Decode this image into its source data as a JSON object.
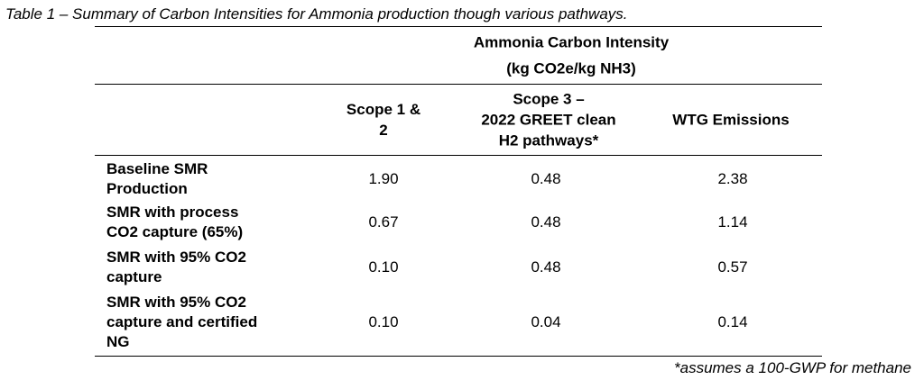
{
  "caption": "Table 1 – Summary of Carbon Intensities for Ammonia production though various pathways.",
  "table": {
    "group_header": [
      "Ammonia Carbon Intensity",
      "(kg CO2e/kg NH3)"
    ],
    "columns": [
      [
        "Scope 1 &",
        "2"
      ],
      [
        "Scope 3 –",
        "2022 GREET clean",
        "H2 pathways*"
      ],
      [
        "WTG Emissions"
      ]
    ],
    "rows": [
      {
        "label": [
          "Baseline SMR",
          "Production"
        ],
        "values": [
          "1.90",
          "0.48",
          "2.38"
        ]
      },
      {
        "label": [
          "SMR with process",
          "CO2 capture (65%)"
        ],
        "values": [
          "0.67",
          "0.48",
          "1.14"
        ]
      },
      {
        "label": [
          "SMR with 95% CO2",
          "capture"
        ],
        "values": [
          "0.10",
          "0.48",
          "0.57"
        ]
      },
      {
        "label": [
          "SMR with 95% CO2",
          "capture and certified",
          "NG"
        ],
        "values": [
          "0.10",
          "0.04",
          "0.14"
        ]
      }
    ]
  },
  "footnote": "*assumes a 100-GWP for methane"
}
